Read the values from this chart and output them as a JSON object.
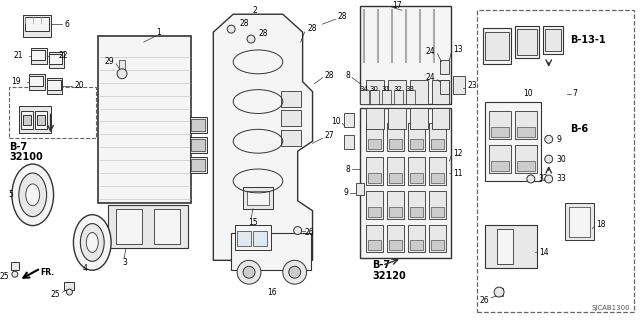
{
  "bg_color": "#ffffff",
  "fig_width": 6.4,
  "fig_height": 3.2,
  "dpi": 100,
  "line_color": "#333333",
  "gray_fill": "#e8e8e8",
  "light_fill": "#f5f5f5",
  "dark_fill": "#cccccc",
  "sjcab": "SJCAB1300",
  "label_fs": 5.5,
  "bold_fs": 7.0
}
